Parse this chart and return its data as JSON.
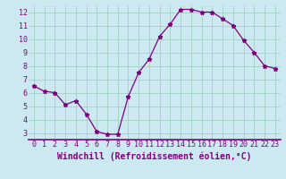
{
  "x": [
    0,
    1,
    2,
    3,
    4,
    5,
    6,
    7,
    8,
    9,
    10,
    11,
    12,
    13,
    14,
    15,
    16,
    17,
    18,
    19,
    20,
    21,
    22,
    23
  ],
  "y": [
    6.5,
    6.1,
    6.0,
    5.1,
    5.4,
    4.4,
    3.1,
    2.9,
    2.9,
    5.7,
    7.5,
    8.5,
    10.2,
    11.1,
    12.2,
    12.2,
    12.0,
    12.0,
    11.5,
    11.0,
    9.9,
    9.0,
    8.0,
    7.8
  ],
  "line_color": "#800080",
  "marker": "*",
  "marker_size": 3.5,
  "bg_color": "#cce8f0",
  "grid_color": "#99ccbb",
  "xlabel": "Windchill (Refroidissement éolien,°C)",
  "xlabel_fontsize": 7,
  "tick_fontsize": 6,
  "xlim": [
    -0.5,
    23.5
  ],
  "ylim": [
    2.5,
    12.5
  ],
  "yticks": [
    3,
    4,
    5,
    6,
    7,
    8,
    9,
    10,
    11,
    12
  ],
  "xticks": [
    0,
    1,
    2,
    3,
    4,
    5,
    6,
    7,
    8,
    9,
    10,
    11,
    12,
    13,
    14,
    15,
    16,
    17,
    18,
    19,
    20,
    21,
    22,
    23
  ],
  "spine_color": "#800080",
  "axis_linewidth": 1.2
}
